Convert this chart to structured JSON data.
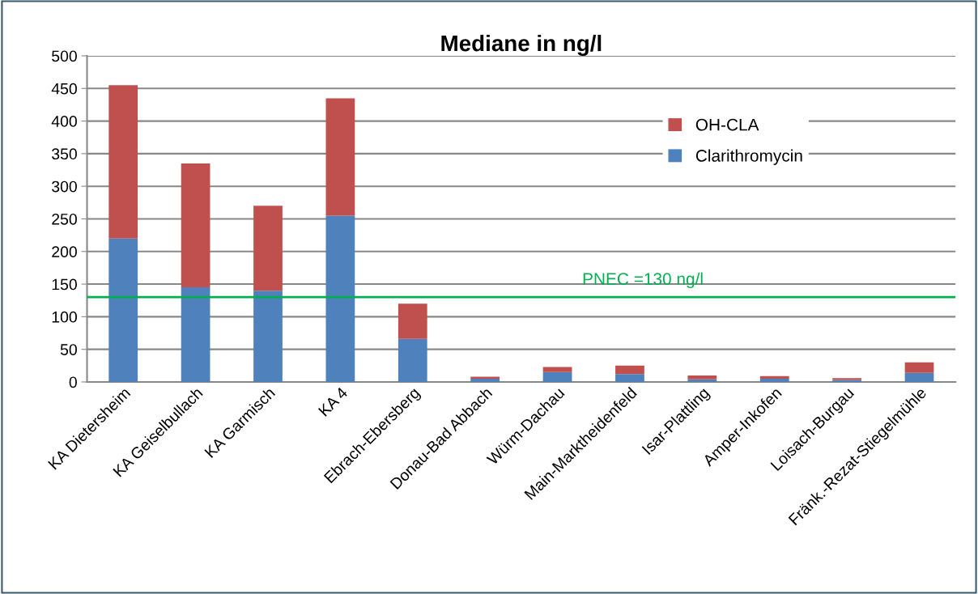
{
  "chart_data": {
    "type": "bar",
    "title": "Mediane in ng/l",
    "stacked": true,
    "categories": [
      "KA Dietersheim",
      "KA Geiselbullach",
      "KA Garmisch",
      "KA 4",
      "Ebrach-Ebersberg",
      "Donau-Bad Abbach",
      "Würm-Dachau",
      "Main-Marktheidenfeld",
      "Isar-Plattling",
      "Amper-Inkofen",
      "Loisach-Burgau",
      "Fränk.-Rezat-Stiegelmühle"
    ],
    "series": [
      {
        "name": "Clarithromycin",
        "color": "#4f81bd",
        "values": [
          220,
          145,
          140,
          255,
          66,
          5,
          15,
          12,
          4,
          5,
          3,
          14
        ]
      },
      {
        "name": "OH-CLA",
        "color": "#c0504d",
        "values": [
          235,
          190,
          130,
          180,
          54,
          3,
          8,
          13,
          6,
          4,
          3,
          16
        ]
      }
    ],
    "ylim": [
      0,
      500
    ],
    "yticks": [
      0,
      50,
      100,
      150,
      200,
      250,
      300,
      350,
      400,
      450,
      500
    ],
    "grid": "y",
    "legend": "top right",
    "ref_lines": [
      {
        "axis": "y",
        "value": 130,
        "label": "PNEC =130 ng/l",
        "color": "#00b050",
        "line_style": "solid"
      }
    ]
  }
}
